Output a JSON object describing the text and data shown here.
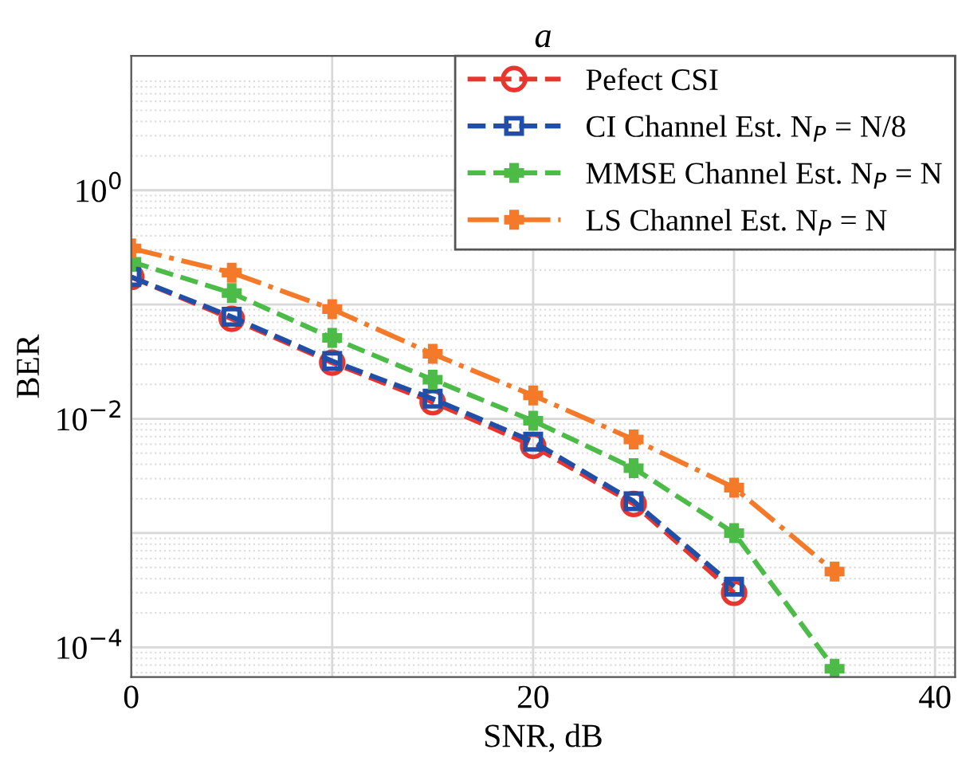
{
  "chart_data": {
    "type": "line",
    "title": "a",
    "xlabel": "SNR, dB",
    "ylabel": "BER",
    "log": "y",
    "x": [
      0,
      5,
      10,
      15,
      20,
      25,
      30,
      35
    ],
    "series": [
      {
        "name": "Pefect CSI",
        "color": "#e8352e",
        "marker": "circle",
        "line_style": "dashed",
        "values": [
          0.174,
          0.075,
          0.031,
          0.014,
          0.0058,
          0.0018,
          0.0003,
          null
        ]
      },
      {
        "name": "CI Channel Est. N$_{P}$ = N/8",
        "color": "#1f4fa8",
        "marker": "square",
        "line_style": "dashed",
        "values": [
          0.174,
          0.078,
          0.032,
          0.015,
          0.0063,
          0.0019,
          0.00034,
          null
        ]
      },
      {
        "name": "MMSE Channel Est. N$_{P}$ = N",
        "color": "#4cbb47",
        "marker": "cross",
        "line_style": "dashed",
        "values": [
          0.237,
          0.126,
          0.051,
          0.022,
          0.0096,
          0.0037,
          0.001,
          6.5e-05
        ]
      },
      {
        "name": "LS Channel Est. N$_{P}$ = N",
        "color": "#f47a2a",
        "marker": "cross",
        "line_style": "dashdot",
        "values": [
          0.31,
          0.19,
          0.091,
          0.037,
          0.016,
          0.0066,
          0.0025,
          0.00046
        ]
      }
    ],
    "xlim": [
      0,
      41
    ],
    "xticks": [
      0,
      {
        "value": 10,
        "label": null
      },
      20,
      {
        "value": 30,
        "label": null
      },
      40
    ],
    "ylim": [
      5.5e-05,
      15
    ],
    "yticks": [
      {
        "value": 0.0001,
        "label": "10$^{−4}$"
      },
      {
        "value": 0.001,
        "label": null
      },
      {
        "value": 0.01,
        "label": "10$^{−2}$"
      },
      {
        "value": 0.1,
        "label": null
      },
      {
        "value": 1,
        "label": "10$^{0}$"
      }
    ],
    "grid": true,
    "legend": "top right"
  }
}
